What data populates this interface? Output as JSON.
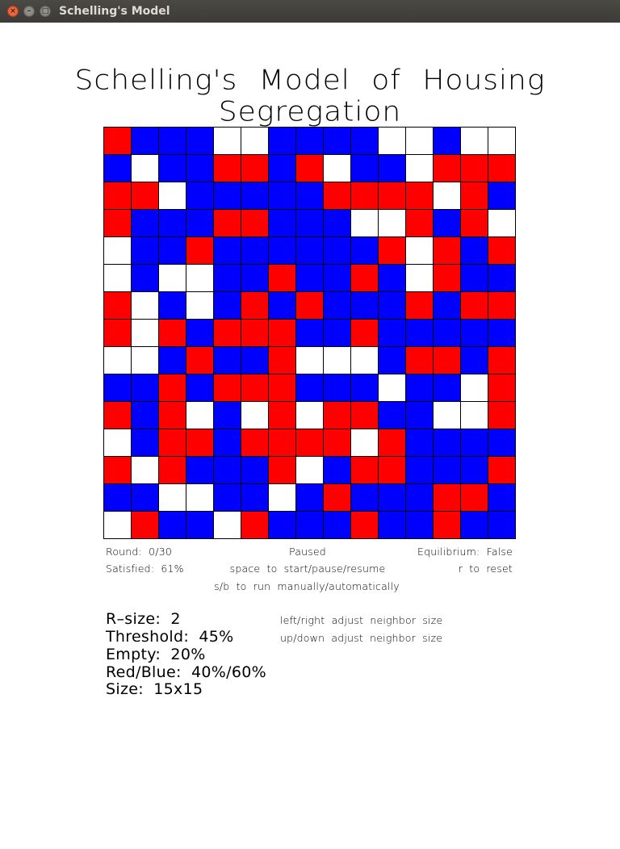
{
  "window": {
    "title": "Schelling's Model",
    "close_glyph": "×",
    "minimize_glyph": "–",
    "maximize_glyph": "□"
  },
  "app": {
    "title": "Schelling's Model of Housing Segregation"
  },
  "colors": {
    "R": "#ff0000",
    "B": "#0000ff",
    "E": "#ffffff"
  },
  "grid": {
    "rows": [
      "RBBBEEBBBBEEBEE",
      "BEBBRRBREBBERRR",
      "RREBBBBBRRRRERB",
      "RBBBRRBBBEERBRE",
      "EBBRBBBBBBRERBR",
      "EBEEBBRBBRBERBB",
      "REBEBRBRBBBRBRR",
      "RERBRRRBBRBBBBB",
      "EEBRBBREEEBRRBR",
      "BBRBRRRBBBEBBER",
      "RBREBERERRBBEER",
      "EBRRBRRRRERBBBB",
      "RERBBBREBRRBBBR",
      "BBEEBBEBRBBBRRB",
      "ERBBERBBBRBBRBB"
    ]
  },
  "status": {
    "round": "Round: 0/30",
    "state": "Paused",
    "equilibrium": "Equilibrium: False",
    "satisfied": "Satisfied: 61%",
    "space_hint": "space to start/pause/resume",
    "reset_hint": "r to reset",
    "sb_hint": "s/b to run manually/automatically"
  },
  "params": {
    "r_size": "R–size: 2",
    "threshold": "Threshold: 45%",
    "empty": "Empty: 20%",
    "red_blue": "Red/Blue: 40%/60%",
    "size": "Size: 15x15"
  },
  "hints": {
    "left_right": "left/right adjust neighbor size",
    "up_down": "up/down adjust neighbor size"
  }
}
